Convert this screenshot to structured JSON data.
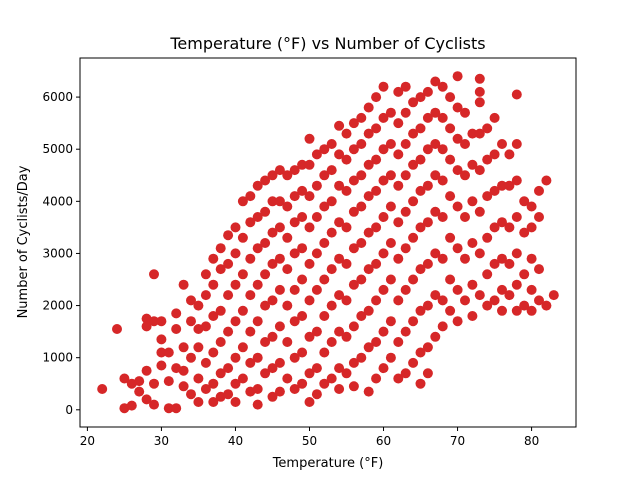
{
  "chart_data": {
    "type": "scatter",
    "title": "Temperature  (°F) vs Number of Cyclists",
    "xlabel": "Temperature (°F)",
    "ylabel": "Number of Cyclists/Day",
    "xlim": [
      19,
      86
    ],
    "ylim": [
      -330,
      6750
    ],
    "xticks": [
      20,
      30,
      40,
      50,
      60,
      70,
      80
    ],
    "yticks": [
      0,
      1000,
      2000,
      3000,
      4000,
      5000,
      6000
    ],
    "grid": false,
    "marker_color": "#d62728",
    "points": [
      [
        22,
        400
      ],
      [
        24,
        1550
      ],
      [
        25,
        600
      ],
      [
        25,
        30
      ],
      [
        26,
        80
      ],
      [
        26,
        500
      ],
      [
        27,
        550
      ],
      [
        27,
        350
      ],
      [
        28,
        1750
      ],
      [
        28,
        1600
      ],
      [
        28,
        750
      ],
      [
        28,
        200
      ],
      [
        29,
        500
      ],
      [
        29,
        1700
      ],
      [
        29,
        2600
      ],
      [
        29,
        100
      ],
      [
        30,
        1100
      ],
      [
        30,
        1700
      ],
      [
        30,
        1350
      ],
      [
        30,
        850
      ],
      [
        31,
        1100
      ],
      [
        31,
        550
      ],
      [
        31,
        30
      ],
      [
        32,
        1850
      ],
      [
        32,
        1550
      ],
      [
        32,
        800
      ],
      [
        32,
        30
      ],
      [
        33,
        2400
      ],
      [
        33,
        1200
      ],
      [
        33,
        750
      ],
      [
        33,
        450
      ],
      [
        34,
        2100
      ],
      [
        34,
        1700
      ],
      [
        34,
        1000
      ],
      [
        34,
        300
      ],
      [
        35,
        2000
      ],
      [
        35,
        1550
      ],
      [
        35,
        1200
      ],
      [
        35,
        600
      ],
      [
        35,
        150
      ],
      [
        36,
        2600
      ],
      [
        36,
        2200
      ],
      [
        36,
        1600
      ],
      [
        36,
        900
      ],
      [
        36,
        400
      ],
      [
        37,
        2900
      ],
      [
        37,
        2400
      ],
      [
        37,
        1800
      ],
      [
        37,
        1100
      ],
      [
        37,
        500
      ],
      [
        37,
        150
      ],
      [
        38,
        3100
      ],
      [
        38,
        2700
      ],
      [
        38,
        1900
      ],
      [
        38,
        1300
      ],
      [
        38,
        700
      ],
      [
        38,
        250
      ],
      [
        39,
        3350
      ],
      [
        39,
        2800
      ],
      [
        39,
        2200
      ],
      [
        39,
        1500
      ],
      [
        39,
        800
      ],
      [
        39,
        300
      ],
      [
        40,
        3500
      ],
      [
        40,
        3000
      ],
      [
        40,
        2400
      ],
      [
        40,
        1700
      ],
      [
        40,
        1000
      ],
      [
        40,
        500
      ],
      [
        40,
        150
      ],
      [
        41,
        4000
      ],
      [
        41,
        3300
      ],
      [
        41,
        2600
      ],
      [
        41,
        1900
      ],
      [
        41,
        1200
      ],
      [
        41,
        600
      ],
      [
        42,
        4100
      ],
      [
        42,
        3600
      ],
      [
        42,
        2900
      ],
      [
        42,
        2200
      ],
      [
        42,
        1500
      ],
      [
        42,
        900
      ],
      [
        42,
        350
      ],
      [
        43,
        4300
      ],
      [
        43,
        3700
      ],
      [
        43,
        3100
      ],
      [
        43,
        2400
      ],
      [
        43,
        1700
      ],
      [
        43,
        1000
      ],
      [
        43,
        400
      ],
      [
        43,
        100
      ],
      [
        44,
        4400
      ],
      [
        44,
        3800
      ],
      [
        44,
        3200
      ],
      [
        44,
        2600
      ],
      [
        44,
        2000
      ],
      [
        44,
        1300
      ],
      [
        44,
        700
      ],
      [
        45,
        4500
      ],
      [
        45,
        4000
      ],
      [
        45,
        3400
      ],
      [
        45,
        2800
      ],
      [
        45,
        2100
      ],
      [
        45,
        1400
      ],
      [
        45,
        800
      ],
      [
        45,
        250
      ],
      [
        46,
        4600
      ],
      [
        46,
        4000
      ],
      [
        46,
        3500
      ],
      [
        46,
        2900
      ],
      [
        46,
        2300
      ],
      [
        46,
        1600
      ],
      [
        46,
        900
      ],
      [
        46,
        350
      ],
      [
        47,
        4500
      ],
      [
        47,
        3900
      ],
      [
        47,
        3300
      ],
      [
        47,
        2700
      ],
      [
        47,
        2000
      ],
      [
        47,
        1300
      ],
      [
        47,
        600
      ],
      [
        48,
        4600
      ],
      [
        48,
        4100
      ],
      [
        48,
        3600
      ],
      [
        48,
        3000
      ],
      [
        48,
        2300
      ],
      [
        48,
        1700
      ],
      [
        48,
        1000
      ],
      [
        48,
        400
      ],
      [
        49,
        4700
      ],
      [
        49,
        4200
      ],
      [
        49,
        3700
      ],
      [
        49,
        3100
      ],
      [
        49,
        2500
      ],
      [
        49,
        1800
      ],
      [
        49,
        1100
      ],
      [
        49,
        500
      ],
      [
        50,
        5200
      ],
      [
        50,
        4700
      ],
      [
        50,
        4100
      ],
      [
        50,
        3500
      ],
      [
        50,
        2800
      ],
      [
        50,
        2100
      ],
      [
        50,
        1400
      ],
      [
        50,
        700
      ],
      [
        50,
        150
      ],
      [
        51,
        4900
      ],
      [
        51,
        4300
      ],
      [
        51,
        3700
      ],
      [
        51,
        3000
      ],
      [
        51,
        2300
      ],
      [
        51,
        1500
      ],
      [
        51,
        800
      ],
      [
        51,
        300
      ],
      [
        52,
        5000
      ],
      [
        52,
        4500
      ],
      [
        52,
        3900
      ],
      [
        52,
        3200
      ],
      [
        52,
        2500
      ],
      [
        52,
        1800
      ],
      [
        52,
        1100
      ],
      [
        52,
        500
      ],
      [
        53,
        5100
      ],
      [
        53,
        4600
      ],
      [
        53,
        4000
      ],
      [
        53,
        3400
      ],
      [
        53,
        2700
      ],
      [
        53,
        2000
      ],
      [
        53,
        1300
      ],
      [
        53,
        600
      ],
      [
        54,
        5450
      ],
      [
        54,
        4900
      ],
      [
        54,
        4300
      ],
      [
        54,
        3600
      ],
      [
        54,
        2900
      ],
      [
        54,
        2200
      ],
      [
        54,
        1500
      ],
      [
        54,
        800
      ],
      [
        54,
        400
      ],
      [
        55,
        5300
      ],
      [
        55,
        4800
      ],
      [
        55,
        4200
      ],
      [
        55,
        3500
      ],
      [
        55,
        2800
      ],
      [
        55,
        2100
      ],
      [
        55,
        1400
      ],
      [
        55,
        700
      ],
      [
        56,
        5500
      ],
      [
        56,
        5000
      ],
      [
        56,
        4400
      ],
      [
        56,
        3800
      ],
      [
        56,
        3100
      ],
      [
        56,
        2400
      ],
      [
        56,
        1600
      ],
      [
        56,
        900
      ],
      [
        56,
        450
      ],
      [
        57,
        5600
      ],
      [
        57,
        5100
      ],
      [
        57,
        4500
      ],
      [
        57,
        3900
      ],
      [
        57,
        3200
      ],
      [
        57,
        2500
      ],
      [
        57,
        1800
      ],
      [
        57,
        1000
      ],
      [
        58,
        5800
      ],
      [
        58,
        5300
      ],
      [
        58,
        4700
      ],
      [
        58,
        4100
      ],
      [
        58,
        3400
      ],
      [
        58,
        2700
      ],
      [
        58,
        1900
      ],
      [
        58,
        1200
      ],
      [
        58,
        350
      ],
      [
        59,
        6000
      ],
      [
        59,
        5400
      ],
      [
        59,
        4800
      ],
      [
        59,
        4200
      ],
      [
        59,
        3500
      ],
      [
        59,
        2800
      ],
      [
        59,
        2100
      ],
      [
        59,
        1300
      ],
      [
        59,
        600
      ],
      [
        60,
        6200
      ],
      [
        60,
        5600
      ],
      [
        60,
        5000
      ],
      [
        60,
        4400
      ],
      [
        60,
        3700
      ],
      [
        60,
        3000
      ],
      [
        60,
        2300
      ],
      [
        60,
        1500
      ],
      [
        60,
        800
      ],
      [
        61,
        5700
      ],
      [
        61,
        5100
      ],
      [
        61,
        4500
      ],
      [
        61,
        3900
      ],
      [
        61,
        3200
      ],
      [
        61,
        2500
      ],
      [
        61,
        1700
      ],
      [
        61,
        1000
      ],
      [
        62,
        6100
      ],
      [
        62,
        5500
      ],
      [
        62,
        4900
      ],
      [
        62,
        4300
      ],
      [
        62,
        3600
      ],
      [
        62,
        2900
      ],
      [
        62,
        2100
      ],
      [
        62,
        1300
      ],
      [
        62,
        600
      ],
      [
        63,
        6200
      ],
      [
        63,
        5700
      ],
      [
        63,
        5100
      ],
      [
        63,
        4500
      ],
      [
        63,
        3800
      ],
      [
        63,
        3100
      ],
      [
        63,
        2300
      ],
      [
        63,
        1500
      ],
      [
        63,
        700
      ],
      [
        64,
        5900
      ],
      [
        64,
        5300
      ],
      [
        64,
        4700
      ],
      [
        64,
        4000
      ],
      [
        64,
        3300
      ],
      [
        64,
        2500
      ],
      [
        64,
        1700
      ],
      [
        64,
        900
      ],
      [
        65,
        6000
      ],
      [
        65,
        5400
      ],
      [
        65,
        4800
      ],
      [
        65,
        4200
      ],
      [
        65,
        3500
      ],
      [
        65,
        2700
      ],
      [
        65,
        1900
      ],
      [
        65,
        1100
      ],
      [
        65,
        500
      ],
      [
        66,
        6100
      ],
      [
        66,
        5600
      ],
      [
        66,
        5000
      ],
      [
        66,
        4300
      ],
      [
        66,
        3600
      ],
      [
        66,
        2800
      ],
      [
        66,
        2000
      ],
      [
        66,
        1200
      ],
      [
        66,
        700
      ],
      [
        67,
        6300
      ],
      [
        67,
        5700
      ],
      [
        67,
        5100
      ],
      [
        67,
        4500
      ],
      [
        67,
        3800
      ],
      [
        67,
        3000
      ],
      [
        67,
        2200
      ],
      [
        67,
        1400
      ],
      [
        68,
        6200
      ],
      [
        68,
        5600
      ],
      [
        68,
        5000
      ],
      [
        68,
        4400
      ],
      [
        68,
        3700
      ],
      [
        68,
        2900
      ],
      [
        68,
        2100
      ],
      [
        68,
        1600
      ],
      [
        69,
        6000
      ],
      [
        69,
        5400
      ],
      [
        69,
        4800
      ],
      [
        69,
        4100
      ],
      [
        69,
        3300
      ],
      [
        69,
        2500
      ],
      [
        69,
        1900
      ],
      [
        70,
        6400
      ],
      [
        70,
        5800
      ],
      [
        70,
        5200
      ],
      [
        70,
        4600
      ],
      [
        70,
        3900
      ],
      [
        70,
        3100
      ],
      [
        70,
        2300
      ],
      [
        70,
        1700
      ],
      [
        71,
        5700
      ],
      [
        71,
        5100
      ],
      [
        71,
        4500
      ],
      [
        71,
        3700
      ],
      [
        71,
        2900
      ],
      [
        71,
        2100
      ],
      [
        72,
        5300
      ],
      [
        72,
        4700
      ],
      [
        72,
        4000
      ],
      [
        72,
        3200
      ],
      [
        72,
        2400
      ],
      [
        72,
        1800
      ],
      [
        73,
        6350
      ],
      [
        73,
        6100
      ],
      [
        73,
        5900
      ],
      [
        73,
        5300
      ],
      [
        73,
        4600
      ],
      [
        73,
        3800
      ],
      [
        73,
        3000
      ],
      [
        73,
        2200
      ],
      [
        74,
        5400
      ],
      [
        74,
        4800
      ],
      [
        74,
        4100
      ],
      [
        74,
        3300
      ],
      [
        74,
        2600
      ],
      [
        74,
        2000
      ],
      [
        75,
        5600
      ],
      [
        75,
        4900
      ],
      [
        75,
        4200
      ],
      [
        75,
        3500
      ],
      [
        75,
        2800
      ],
      [
        75,
        2100
      ],
      [
        76,
        5100
      ],
      [
        76,
        4300
      ],
      [
        76,
        3600
      ],
      [
        76,
        2900
      ],
      [
        76,
        2300
      ],
      [
        76,
        1900
      ],
      [
        77,
        4900
      ],
      [
        77,
        4300
      ],
      [
        77,
        3500
      ],
      [
        77,
        2800
      ],
      [
        77,
        2200
      ],
      [
        78,
        6050
      ],
      [
        78,
        5100
      ],
      [
        78,
        4400
      ],
      [
        78,
        3700
      ],
      [
        78,
        3000
      ],
      [
        78,
        2400
      ],
      [
        78,
        1900
      ],
      [
        79,
        4000
      ],
      [
        79,
        3400
      ],
      [
        79,
        2600
      ],
      [
        79,
        2000
      ],
      [
        80,
        3900
      ],
      [
        80,
        3500
      ],
      [
        80,
        2900
      ],
      [
        80,
        2300
      ],
      [
        80,
        1900
      ],
      [
        81,
        4200
      ],
      [
        81,
        3700
      ],
      [
        81,
        2700
      ],
      [
        81,
        2100
      ],
      [
        82,
        4400
      ],
      [
        82,
        2000
      ],
      [
        83,
        2200
      ]
    ]
  }
}
